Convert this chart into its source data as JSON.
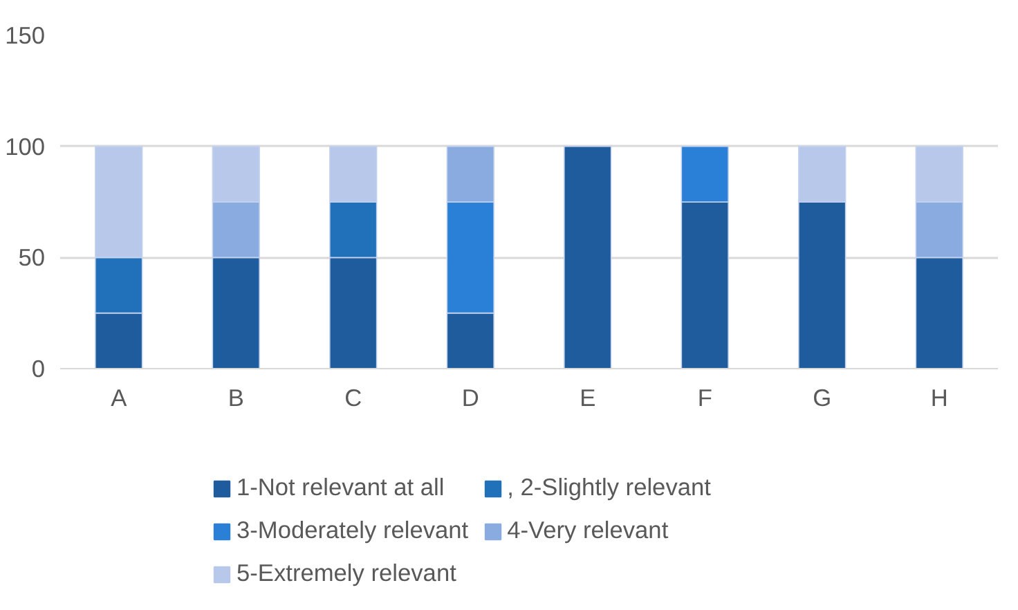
{
  "chart_data": {
    "type": "bar",
    "stacked": true,
    "categories": [
      "A",
      "B",
      "C",
      "D",
      "E",
      "F",
      "G",
      "H"
    ],
    "series": [
      {
        "name": "1-Not relevant at all",
        "color": "#1f5c9e",
        "values": [
          25,
          50,
          50,
          25,
          100,
          75,
          75,
          50
        ]
      },
      {
        "name": ", 2-Slightly relevant",
        "color": "#2170ba",
        "values": [
          25,
          0,
          25,
          0,
          0,
          0,
          0,
          0
        ]
      },
      {
        "name": "3-Moderately relevant",
        "color": "#2a7fd6",
        "values": [
          0,
          0,
          0,
          50,
          0,
          25,
          0,
          0
        ]
      },
      {
        "name": "4-Very relevant",
        "color": "#8aabe0",
        "values": [
          0,
          25,
          0,
          25,
          0,
          0,
          0,
          25
        ]
      },
      {
        "name": "5-Extremely relevant",
        "color": "#b7c8ea",
        "values": [
          50,
          25,
          25,
          0,
          0,
          0,
          25,
          25
        ]
      }
    ],
    "ylim": [
      0,
      150
    ],
    "yticks": [
      0,
      50,
      100,
      150
    ],
    "grid": "y",
    "legend": "bottom"
  }
}
